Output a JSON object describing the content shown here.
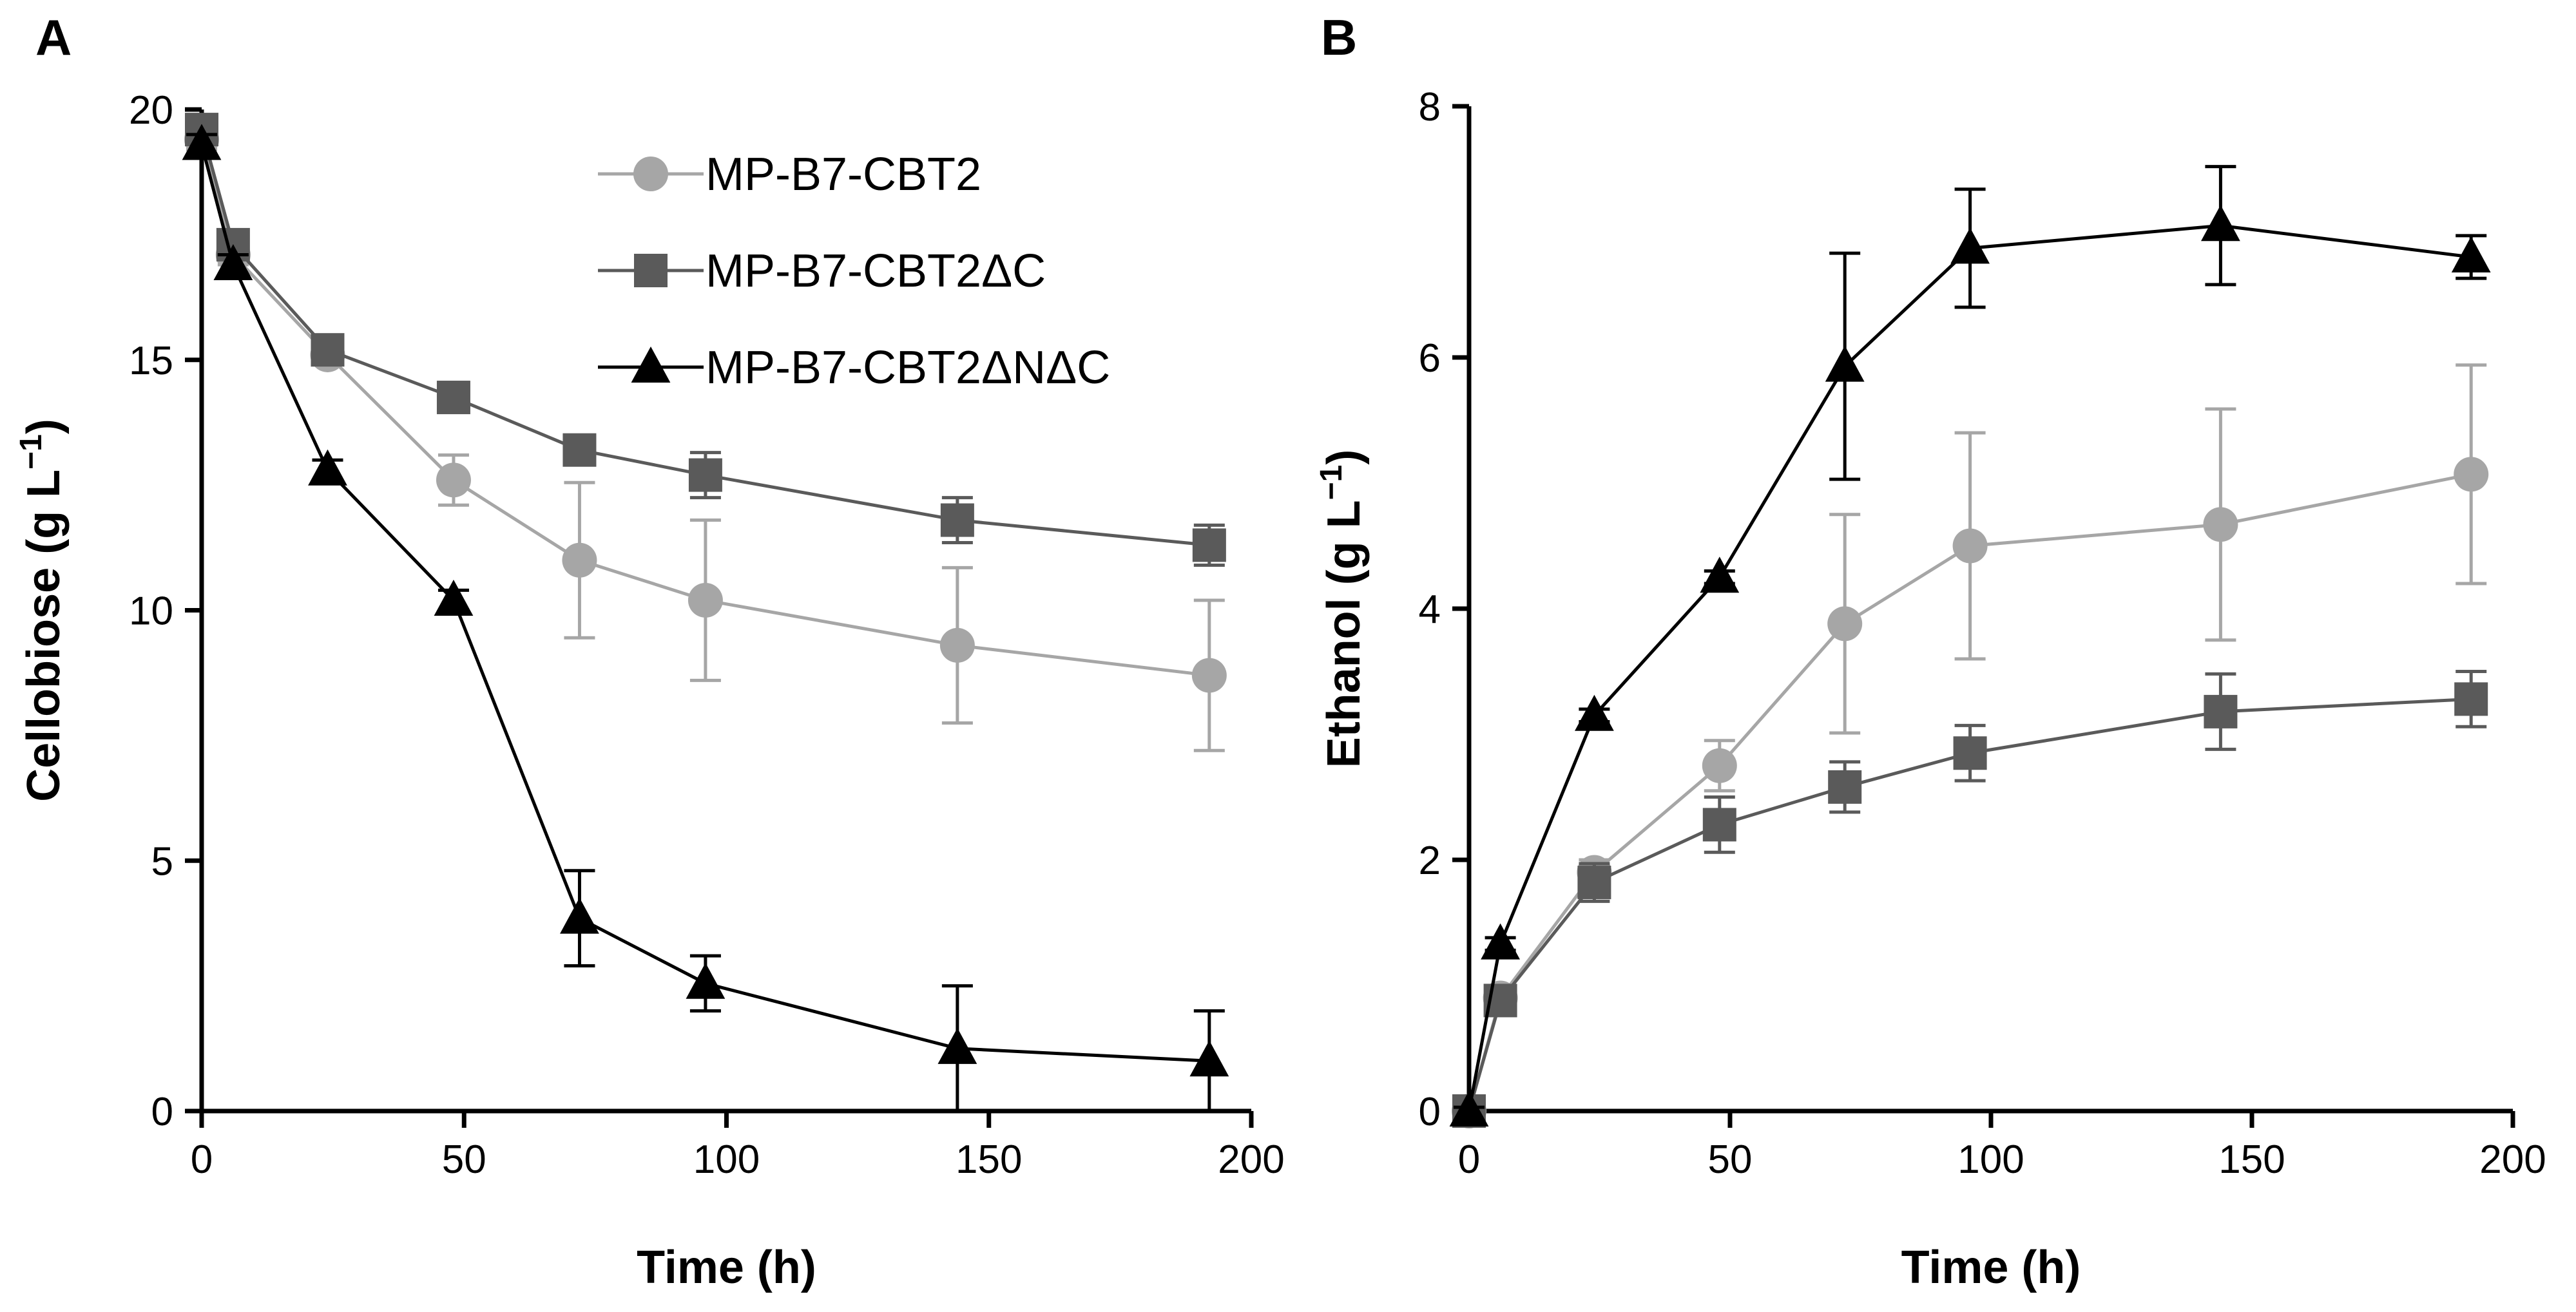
{
  "chart_data": [
    {
      "panel": "A",
      "type": "line",
      "xlabel": "Time (h)",
      "ylabel": "Cellobiose (g L",
      "ylabel_unit_sup": "−1",
      "ylabel_close": ")",
      "xlim": [
        0,
        200
      ],
      "ylim": [
        0,
        20
      ],
      "x_ticks": [
        0,
        50,
        100,
        150,
        200
      ],
      "y_ticks": [
        0,
        5,
        10,
        15,
        20
      ],
      "x_tick_labels": [
        "0",
        "50",
        "100",
        "150",
        "200"
      ],
      "y_tick_labels": [
        "0",
        "5",
        "10",
        "15",
        "20"
      ],
      "grid": false,
      "legend": {
        "position": "top-right"
      },
      "x": [
        0,
        6,
        24,
        48,
        72,
        96,
        144,
        192
      ],
      "series": [
        {
          "name": "MP-B7-CBT2",
          "color": "#a6a6a6",
          "marker": "circle",
          "values": [
            19.4,
            17.1,
            15.1,
            12.6,
            11.0,
            10.2,
            9.3,
            8.7
          ],
          "errors": [
            0.2,
            0.2,
            0.2,
            0.5,
            1.55,
            1.6,
            1.55,
            1.5
          ]
        },
        {
          "name": "MP-B7-CBT2ΔC",
          "color": "#5a5a5a",
          "marker": "square",
          "values": [
            19.6,
            17.3,
            15.2,
            14.25,
            13.2,
            12.7,
            11.8,
            11.3
          ],
          "errors": [
            0.2,
            0.2,
            0.2,
            0.3,
            0.25,
            0.45,
            0.45,
            0.4
          ]
        },
        {
          "name": "MP-B7-CBT2ΔNΔC",
          "color": "#000000",
          "marker": "triangle",
          "values": [
            19.3,
            16.9,
            12.8,
            10.2,
            3.85,
            2.55,
            1.25,
            1.0
          ],
          "errors": [
            0.2,
            0.2,
            0.2,
            0.2,
            0.95,
            0.55,
            1.25,
            1.0
          ]
        }
      ]
    },
    {
      "panel": "B",
      "type": "line",
      "xlabel": "Time (h)",
      "ylabel": "Ethanol (g L",
      "ylabel_unit_sup": "−1",
      "ylabel_close": ")",
      "xlim": [
        0,
        200
      ],
      "ylim": [
        0,
        8
      ],
      "x_ticks": [
        0,
        50,
        100,
        150,
        200
      ],
      "y_ticks": [
        0,
        2,
        4,
        6,
        8
      ],
      "x_tick_labels": [
        "0",
        "50",
        "100",
        "150",
        "200"
      ],
      "y_tick_labels": [
        "0",
        "2",
        "4",
        "6",
        "8"
      ],
      "grid": false,
      "legend": {
        "position": "none"
      },
      "x": [
        0,
        6,
        24,
        48,
        72,
        96,
        144,
        192
      ],
      "series": [
        {
          "name": "MP-B7-CBT2",
          "color": "#a6a6a6",
          "marker": "circle",
          "values": [
            0.0,
            0.9,
            1.9,
            2.75,
            3.88,
            4.5,
            4.67,
            5.07
          ],
          "errors": [
            0.03,
            0.05,
            0.1,
            0.2,
            0.87,
            0.9,
            0.92,
            0.87
          ]
        },
        {
          "name": "MP-B7-CBT2ΔC",
          "color": "#5a5a5a",
          "marker": "square",
          "values": [
            0.0,
            0.88,
            1.82,
            2.28,
            2.58,
            2.85,
            3.18,
            3.28
          ],
          "errors": [
            0.03,
            0.05,
            0.15,
            0.22,
            0.2,
            0.22,
            0.3,
            0.22
          ]
        },
        {
          "name": "MP-B7-CBT2ΔNΔC",
          "color": "#000000",
          "marker": "triangle",
          "values": [
            0.0,
            1.33,
            3.15,
            4.25,
            5.93,
            6.87,
            7.05,
            6.8
          ],
          "errors": [
            0.03,
            0.05,
            0.05,
            0.05,
            0.9,
            0.47,
            0.47,
            0.17
          ]
        }
      ]
    }
  ]
}
